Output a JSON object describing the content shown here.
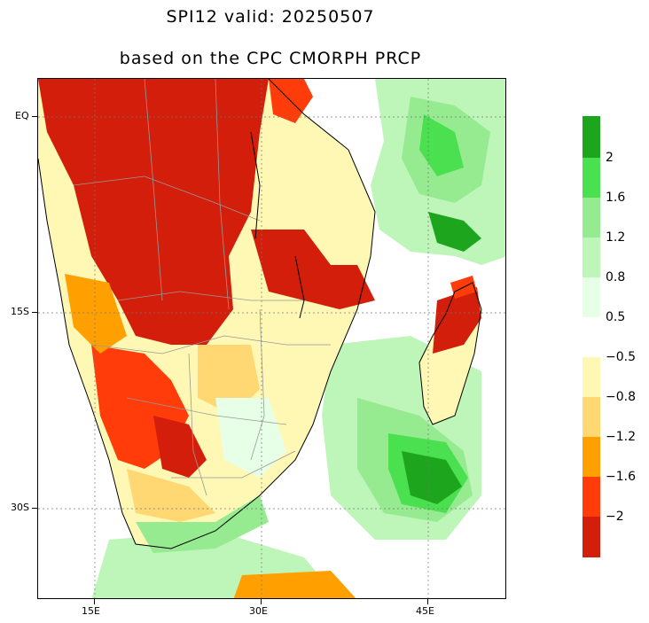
{
  "title": {
    "line1": "SPI12  valid: 20250507",
    "line2": "based on the CPC CMORPH PRCP"
  },
  "axes": {
    "y_labels": [
      "EQ",
      "15S",
      "30S"
    ],
    "x_labels": [
      "15E",
      "30E",
      "45E"
    ]
  },
  "colors": {
    "dark_red": "#d21e0a",
    "red": "#ff3c0a",
    "orange": "#ffa000",
    "light_orange": "#ffd773",
    "pale_yellow": "#fff8b4",
    "pale_green": "#e6ffe6",
    "light_green": "#bef5b9",
    "mid_green": "#96eb91",
    "green": "#4be050",
    "dark_green": "#1ea51e",
    "border_black": "#000000",
    "border_gray": "#999999"
  },
  "legend": {
    "positive": [
      "2",
      "1.6",
      "1.2",
      "0.8",
      "0.5"
    ],
    "negative": [
      "−0.5",
      "−0.8",
      "−1.2",
      "−1.6",
      "−2"
    ]
  }
}
